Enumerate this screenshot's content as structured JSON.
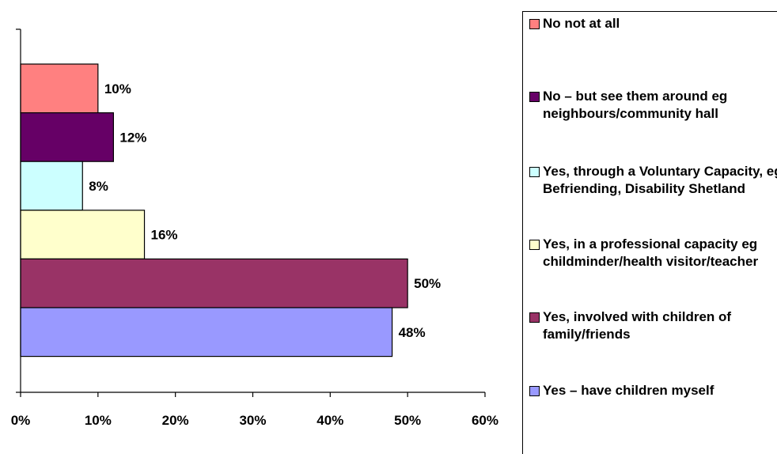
{
  "chart_data": {
    "type": "bar",
    "orientation": "horizontal",
    "categories": [
      "No not at all",
      "No – but see them around eg neighbours/community hall",
      "Yes, through a Voluntary Capacity, eg Befriending, Disability Shetland",
      "Yes, in a professional capacity eg childminder/health visitor/teacher",
      "Yes, involved with children of family/friends",
      "Yes – have children myself"
    ],
    "values": [
      10,
      12,
      8,
      16,
      50,
      48
    ],
    "data_labels": [
      "10%",
      "12%",
      "8%",
      "16%",
      "50%",
      "48%"
    ],
    "colors": [
      "#ff8080",
      "#660066",
      "#ccffff",
      "#ffffcc",
      "#993366",
      "#9999ff"
    ],
    "xlim": [
      0,
      60
    ],
    "x_ticks": [
      "0%",
      "10%",
      "20%",
      "30%",
      "40%",
      "50%",
      "60%"
    ],
    "grid": false,
    "legend_position": "right",
    "legend": [
      {
        "text": "No not at all",
        "color": "#ff8080"
      },
      {
        "text": "No – but see them around eg neighbours/community hall",
        "color": "#660066"
      },
      {
        "text": "Yes, through a Voluntary Capacity, eg Befriending, Disability Shetland",
        "color": "#ccffff"
      },
      {
        "text": "Yes, in a professional capacity eg childminder/health visitor/teacher",
        "color": "#ffffcc"
      },
      {
        "text": "Yes, involved with children of family/friends",
        "color": "#993366"
      },
      {
        "text": "Yes – have children myself",
        "color": "#9999ff"
      }
    ]
  }
}
